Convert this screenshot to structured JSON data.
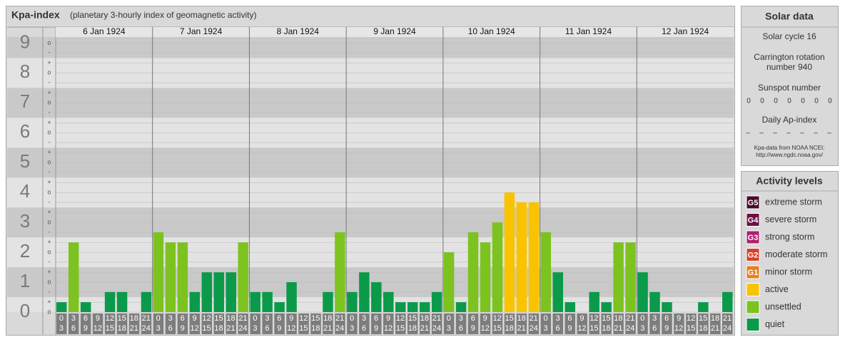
{
  "chart_data": {
    "type": "bar",
    "title": "Kpa-index",
    "subtitle": "(planetary 3-hourly index of geomagnetic activity)",
    "ylim": [
      0,
      9.2
    ],
    "yticks": [
      0,
      1,
      2,
      3,
      4,
      5,
      6,
      7,
      8,
      9
    ],
    "sub_ticks": [
      {
        "value": 0,
        "label": "o"
      },
      {
        "value": 0.33,
        "label": "+"
      },
      {
        "value": 0.67,
        "label": "-"
      },
      {
        "value": 1,
        "label": "o"
      },
      {
        "value": 1.33,
        "label": "+"
      },
      {
        "value": 1.67,
        "label": "-"
      },
      {
        "value": 2,
        "label": "o"
      },
      {
        "value": 2.33,
        "label": "+"
      },
      {
        "value": 2.67,
        "label": "-"
      },
      {
        "value": 3,
        "label": "o"
      },
      {
        "value": 3.33,
        "label": "+"
      },
      {
        "value": 3.67,
        "label": "-"
      },
      {
        "value": 4,
        "label": "o"
      },
      {
        "value": 4.33,
        "label": "+"
      },
      {
        "value": 4.67,
        "label": "-"
      },
      {
        "value": 5,
        "label": "o"
      },
      {
        "value": 5.33,
        "label": "+"
      },
      {
        "value": 5.67,
        "label": "-"
      },
      {
        "value": 6,
        "label": "o"
      },
      {
        "value": 6.33,
        "label": "+"
      },
      {
        "value": 6.67,
        "label": "-"
      },
      {
        "value": 7,
        "label": "o"
      },
      {
        "value": 7.33,
        "label": "+"
      },
      {
        "value": 7.67,
        "label": "-"
      },
      {
        "value": 8,
        "label": "o"
      },
      {
        "value": 8.33,
        "label": "+"
      },
      {
        "value": 8.67,
        "label": "-"
      },
      {
        "value": 9,
        "label": "o"
      }
    ],
    "hour_ranges": [
      [
        0,
        3
      ],
      [
        3,
        6
      ],
      [
        6,
        9
      ],
      [
        9,
        12
      ],
      [
        12,
        15
      ],
      [
        15,
        18
      ],
      [
        18,
        21
      ],
      [
        21,
        24
      ]
    ],
    "days": [
      {
        "date": "6 Jan 1924",
        "values": [
          0.33,
          2.33,
          0.33,
          0,
          0.67,
          0.67,
          0,
          0.67
        ],
        "levels": [
          "quiet",
          "unsettled",
          "quiet",
          "quiet",
          "quiet",
          "quiet",
          "quiet",
          "quiet"
        ]
      },
      {
        "date": "7 Jan 1924",
        "values": [
          2.67,
          2.33,
          2.33,
          0.67,
          1.33,
          1.33,
          1.33,
          2.33
        ],
        "levels": [
          "unsettled",
          "unsettled",
          "unsettled",
          "quiet",
          "quiet",
          "quiet",
          "quiet",
          "unsettled"
        ]
      },
      {
        "date": "8 Jan 1924",
        "values": [
          0.67,
          0.67,
          0.33,
          1,
          0,
          0,
          0.67,
          2.67
        ],
        "levels": [
          "quiet",
          "quiet",
          "quiet",
          "quiet",
          "quiet",
          "quiet",
          "quiet",
          "unsettled"
        ]
      },
      {
        "date": "9 Jan 1924",
        "values": [
          0.67,
          1.33,
          1,
          0.67,
          0.33,
          0.33,
          0.33,
          0.67
        ],
        "levels": [
          "quiet",
          "quiet",
          "quiet",
          "quiet",
          "quiet",
          "quiet",
          "quiet",
          "quiet"
        ]
      },
      {
        "date": "10 Jan 1924",
        "values": [
          2,
          0.33,
          2.67,
          2.33,
          3,
          4,
          3.67,
          3.67
        ],
        "levels": [
          "unsettled",
          "quiet",
          "unsettled",
          "unsettled",
          "unsettled",
          "active",
          "active",
          "active"
        ]
      },
      {
        "date": "11 Jan 1924",
        "values": [
          2.67,
          1.33,
          0.33,
          0,
          0.67,
          0.33,
          2.33,
          2.33
        ],
        "levels": [
          "unsettled",
          "quiet",
          "quiet",
          "quiet",
          "quiet",
          "quiet",
          "unsettled",
          "unsettled"
        ]
      },
      {
        "date": "12 Jan 1924",
        "values": [
          1.33,
          0.67,
          0.33,
          0,
          0,
          0.33,
          0,
          0.67
        ],
        "levels": [
          "quiet",
          "quiet",
          "quiet",
          "quiet",
          "quiet",
          "quiet",
          "quiet",
          "quiet"
        ]
      }
    ]
  },
  "solar_data": {
    "title": "Solar data",
    "solar_cycle": "Solar cycle 16",
    "carrington": [
      "Carrington rotation",
      "number 940"
    ],
    "sunspot_label": "Sunspot number",
    "sunspot": [
      0,
      0,
      0,
      0,
      0,
      0,
      0
    ],
    "ap_label": "Daily Ap-index",
    "ap": [
      "–",
      "–",
      "–",
      "–",
      "–",
      "–",
      "–"
    ],
    "source": [
      "Kpa-data from NOAA NCEI:",
      "http://www.ngdc.noaa.gov/"
    ]
  },
  "activity_levels": {
    "title": "Activity levels",
    "items": [
      {
        "badge": "G5",
        "name": "extreme storm",
        "color": "#4a0a2a"
      },
      {
        "badge": "G4",
        "name": "severe storm",
        "color": "#6e0f45"
      },
      {
        "badge": "G3",
        "name": "strong storm",
        "color": "#b01e6e"
      },
      {
        "badge": "G2",
        "name": "moderate storm",
        "color": "#d8402a"
      },
      {
        "badge": "G1",
        "name": "minor storm",
        "color": "#e8801e"
      },
      {
        "badge": null,
        "name": "active",
        "color": "#f9c300"
      },
      {
        "badge": null,
        "name": "unsettled",
        "color": "#7cc320"
      },
      {
        "badge": null,
        "name": "quiet",
        "color": "#0a9a4a"
      }
    ]
  }
}
